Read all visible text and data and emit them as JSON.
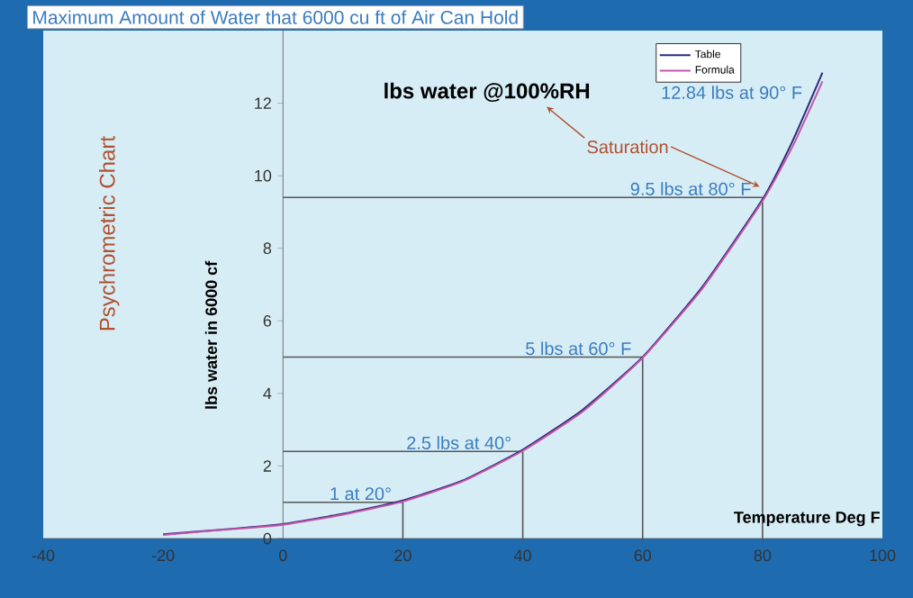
{
  "chart_data": {
    "type": "line",
    "title": "Maximum Amount of Water that 6000 cu ft of Air Can Hold",
    "subtitle": "lbs water @100%RH",
    "xlabel": "Temperature Deg F",
    "ylabel": "lbs water in 6000 cf",
    "x": [
      -20,
      -10,
      0,
      10,
      20,
      30,
      40,
      50,
      60,
      70,
      80,
      85,
      90
    ],
    "series": [
      {
        "name": "Table",
        "color": "#2b2a7c",
        "values": [
          0.12,
          0.25,
          0.4,
          0.68,
          1.05,
          1.6,
          2.45,
          3.55,
          5.0,
          6.95,
          9.35,
          10.95,
          12.84
        ]
      },
      {
        "name": "Formula",
        "color": "#c456a8",
        "values": [
          0.1,
          0.24,
          0.38,
          0.66,
          1.02,
          1.58,
          2.42,
          3.5,
          4.98,
          6.9,
          9.3,
          10.8,
          12.6
        ]
      }
    ],
    "xlim": [
      -40,
      100
    ],
    "xticks": [
      -40,
      -20,
      0,
      20,
      40,
      60,
      80,
      100
    ],
    "ylim": [
      0,
      14
    ],
    "yticks": [
      0,
      2,
      4,
      6,
      8,
      10,
      12
    ],
    "annotations": [
      {
        "text": "1 at 20°",
        "x": 20,
        "y": 1
      },
      {
        "text": "2.5 lbs at 40°",
        "x": 40,
        "y": 2.4
      },
      {
        "text": "5 lbs at 60° F",
        "x": 60,
        "y": 5
      },
      {
        "text": "9.5 lbs  at 80°  F",
        "x": 80,
        "y": 9.4
      },
      {
        "text": "12.84 lbs at 90° F",
        "x": 90,
        "y": 12.84
      },
      "Saturation",
      "Psychrometric Chart"
    ],
    "legend": "top right",
    "grid": false,
    "marker": "none",
    "line_style": "solid"
  }
}
